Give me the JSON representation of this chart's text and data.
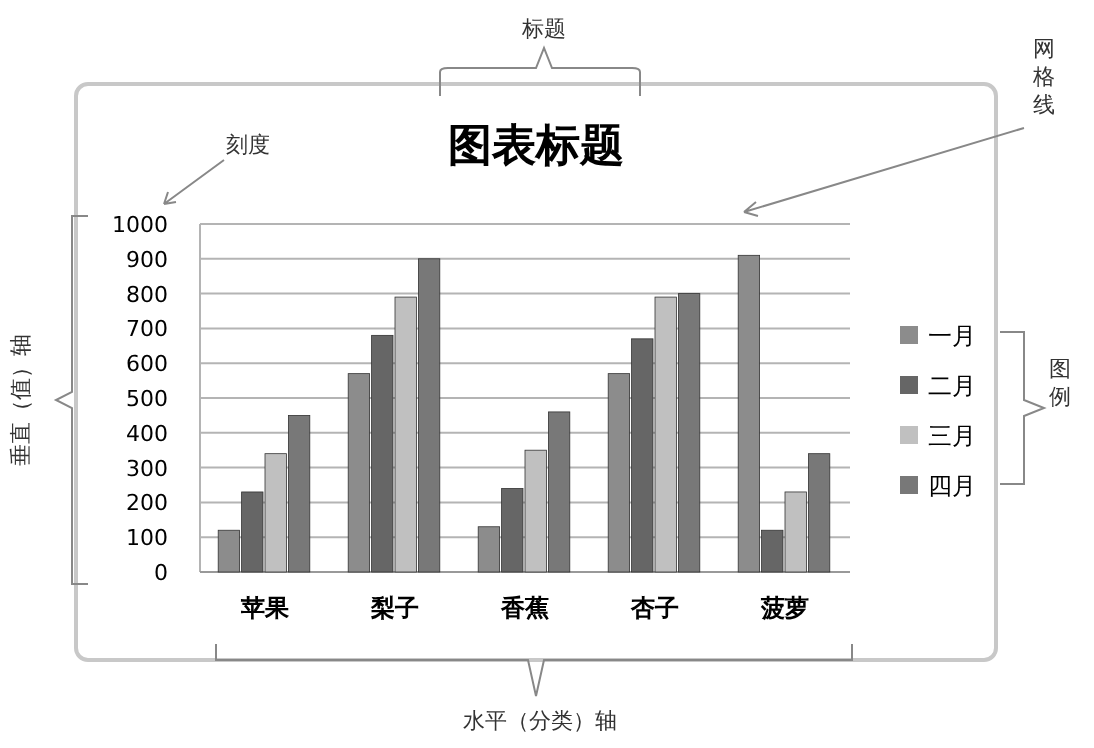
{
  "chart_data": {
    "type": "bar",
    "title": "图表标题",
    "categories": [
      "苹果",
      "梨子",
      "香蕉",
      "杏子",
      "菠萝"
    ],
    "series": [
      {
        "name": "一月",
        "color": "#8c8c8c",
        "values": [
          120,
          570,
          130,
          570,
          910
        ]
      },
      {
        "name": "二月",
        "color": "#666666",
        "values": [
          230,
          680,
          240,
          670,
          120
        ]
      },
      {
        "name": "三月",
        "color": "#c0c0c0",
        "values": [
          340,
          790,
          350,
          790,
          230
        ]
      },
      {
        "name": "四月",
        "color": "#787878",
        "values": [
          450,
          900,
          460,
          800,
          340
        ]
      }
    ],
    "ylim": [
      0,
      1000
    ],
    "yticks": [
      0,
      100,
      200,
      300,
      400,
      500,
      600,
      700,
      800,
      900,
      1000
    ],
    "grid": "y",
    "legend": "right",
    "annotations": [
      "标题",
      "刻度",
      "网格线",
      "垂直（值）轴",
      "图例",
      "水平（分类）轴"
    ]
  }
}
